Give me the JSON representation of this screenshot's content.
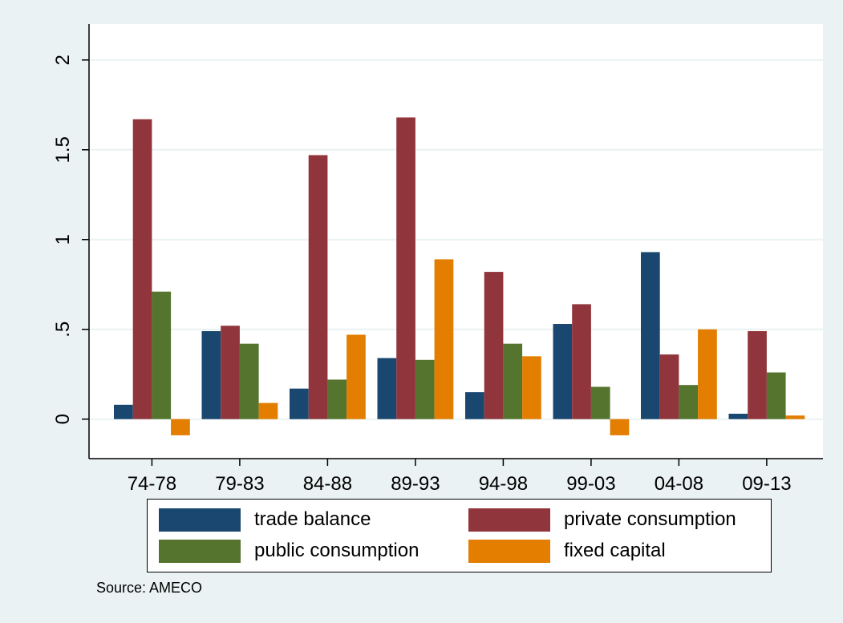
{
  "chart_data": {
    "type": "bar",
    "categories": [
      "74-78",
      "79-83",
      "84-88",
      "89-93",
      "94-98",
      "99-03",
      "04-08",
      "09-13"
    ],
    "series": [
      {
        "name": "trade balance",
        "color": "#1a476f",
        "values": [
          0.08,
          0.49,
          0.17,
          0.34,
          0.15,
          0.53,
          0.93,
          0.03
        ]
      },
      {
        "name": "private consumption",
        "color": "#90353b",
        "values": [
          1.67,
          0.52,
          1.47,
          1.68,
          0.82,
          0.64,
          0.36,
          0.49
        ]
      },
      {
        "name": "public consumption",
        "color": "#55752f",
        "values": [
          0.71,
          0.42,
          0.22,
          0.33,
          0.42,
          0.18,
          0.19,
          0.26
        ]
      },
      {
        "name": "fixed capital",
        "color": "#e37e00",
        "values": [
          -0.09,
          0.09,
          0.47,
          0.89,
          0.35,
          -0.09,
          0.5,
          0.02
        ]
      }
    ],
    "yticks": [
      "0",
      ".5",
      "1",
      "1.5",
      "2"
    ],
    "ytick_values": [
      0,
      0.5,
      1,
      1.5,
      2
    ],
    "ylim": [
      -0.22,
      2.2
    ],
    "grid": true,
    "legend_placement": "bottom",
    "source_note": "Source: AMECO",
    "colors": {
      "background": "#eaf2f3",
      "plot_area": "#ffffff",
      "grid": "#eaf2f3"
    }
  }
}
